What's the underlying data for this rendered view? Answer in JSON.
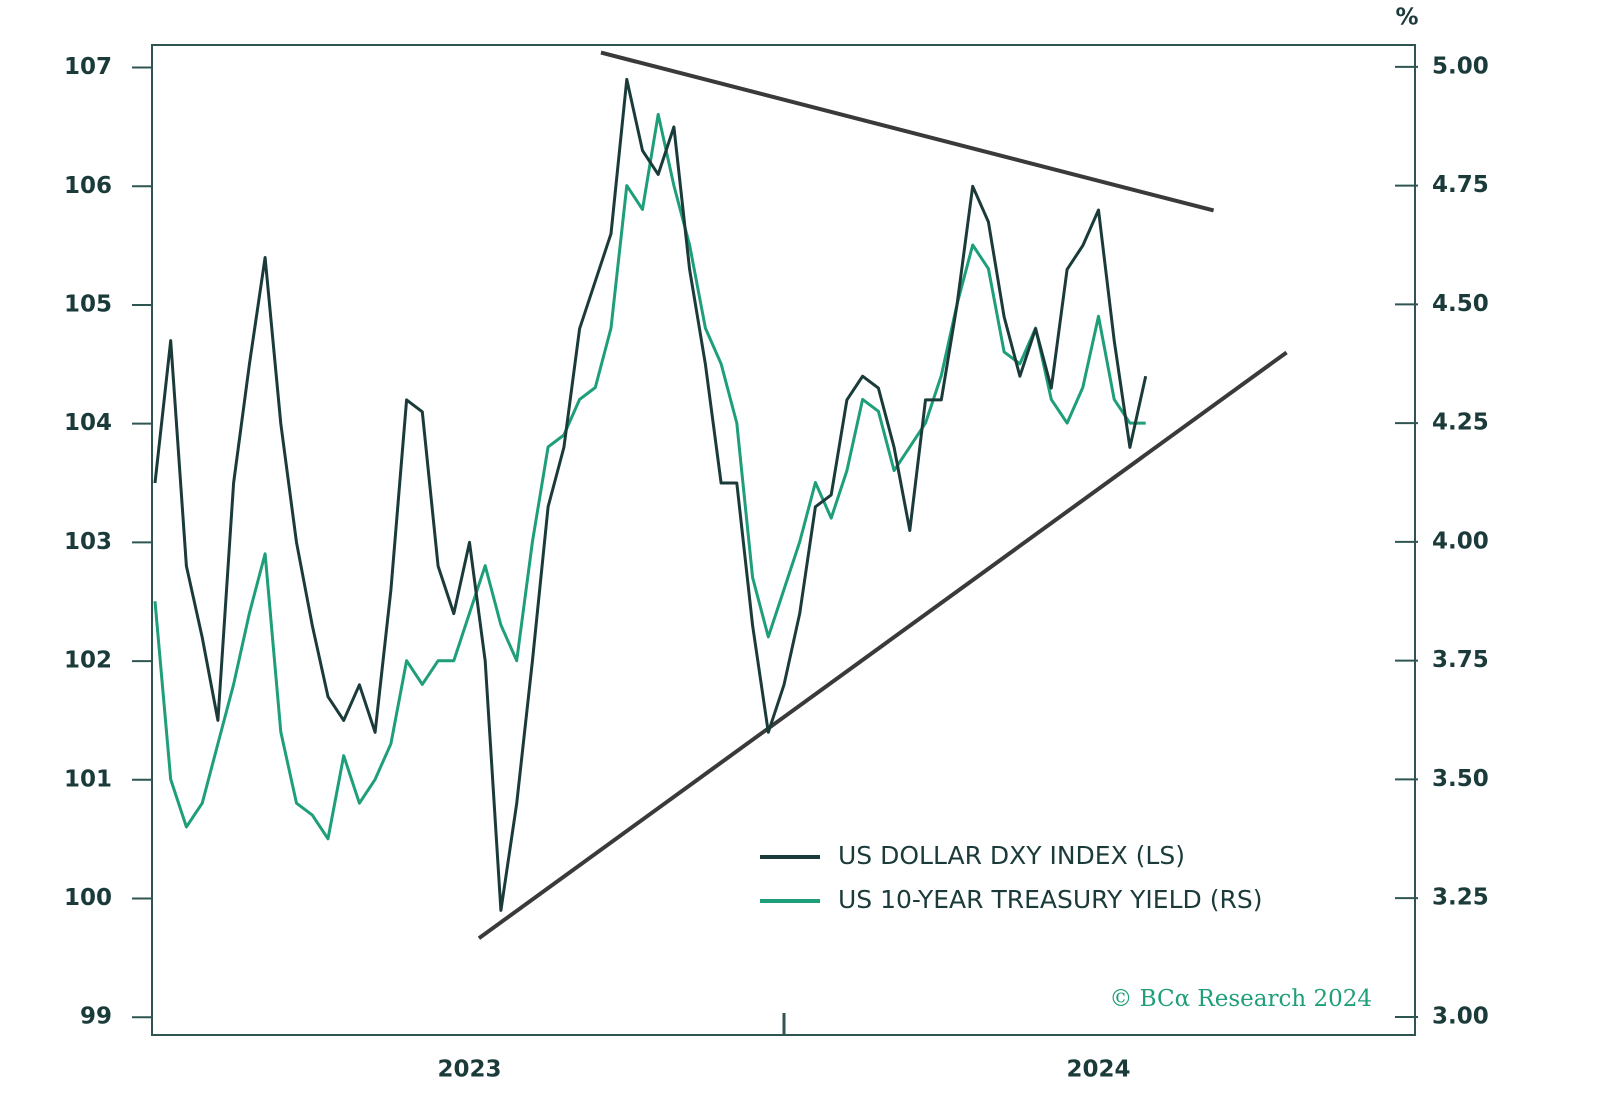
{
  "chart_data": {
    "type": "line",
    "xlim": [
      2023,
      2025
    ],
    "xticks": [
      {
        "value": 2023.5,
        "label": "2023"
      },
      {
        "value": 2024.5,
        "label": "2024"
      }
    ],
    "xticks_minor": [
      2024
    ],
    "ylim": [
      98.85,
      107.19
    ],
    "yticks": [
      99,
      100,
      101,
      102,
      103,
      104,
      105,
      106,
      107
    ],
    "y2lim": [
      2.962,
      5.046
    ],
    "y2ticks": [
      {
        "value": 3,
        "label": "3.00"
      },
      3.25,
      {
        "value": 3.5,
        "label": "3.50"
      },
      3.75,
      {
        "value": 4,
        "label": "4.00"
      },
      4.25,
      {
        "value": 4.5,
        "label": "4.50"
      },
      4.75,
      {
        "value": 5,
        "label": "5.00"
      }
    ],
    "y2_unit": "%",
    "x": [
      2023,
      2023.025,
      2023.05,
      2023.075,
      2023.1,
      2023.125,
      2023.15,
      2023.175,
      2023.2,
      2023.225,
      2023.25,
      2023.275,
      2023.3,
      2023.325,
      2023.35,
      2023.375,
      2023.4,
      2023.425,
      2023.45,
      2023.475,
      2023.5,
      2023.525,
      2023.55,
      2023.575,
      2023.6,
      2023.625,
      2023.65,
      2023.675,
      2023.7,
      2023.725,
      2023.75,
      2023.775,
      2023.8,
      2023.825,
      2023.85,
      2023.875,
      2023.9,
      2023.925,
      2023.95,
      2023.975,
      2024,
      2024.025,
      2024.05,
      2024.075,
      2024.1,
      2024.125,
      2024.15,
      2024.175,
      2024.2,
      2024.225,
      2024.25,
      2024.275,
      2024.3,
      2024.325,
      2024.35,
      2024.375,
      2024.4,
      2024.425,
      2024.45,
      2024.475,
      2024.5,
      2024.525,
      2024.55,
      2024.575
    ],
    "series": [
      {
        "name": "US DOLLAR DXY INDEX (LS)",
        "color": "#1b3b3a",
        "values": [
          103.5,
          104.7,
          102.8,
          102.2,
          101.5,
          103.5,
          104.5,
          105.4,
          104.0,
          103.0,
          102.3,
          101.7,
          101.5,
          101.8,
          101.4,
          102.6,
          104.2,
          104.1,
          102.8,
          102.4,
          103.0,
          102.0,
          99.9,
          100.8,
          102.0,
          103.3,
          103.8,
          104.8,
          105.2,
          105.6,
          106.9,
          106.3,
          106.1,
          106.5,
          105.3,
          104.5,
          103.5,
          103.5,
          102.3,
          101.4,
          101.8,
          102.4,
          103.3,
          103.4,
          104.2,
          104.4,
          104.3,
          103.8,
          103.1,
          104.2,
          104.2,
          105.0,
          106.0,
          105.7,
          104.9,
          104.4,
          104.8,
          104.3,
          105.3,
          105.5,
          105.8,
          104.7,
          103.8,
          104.4
        ]
      },
      {
        "name": "US 10-YEAR TREASURY YIELD (RS)",
        "color": "#1f9e7a",
        "axis": "y2",
        "values": [
          3.875,
          3.5,
          3.4,
          3.45,
          3.575,
          3.7,
          3.85,
          3.975,
          3.6,
          3.45,
          3.425,
          3.375,
          3.55,
          3.45,
          3.5,
          3.575,
          3.75,
          3.7,
          3.75,
          3.75,
          3.85,
          3.95,
          3.825,
          3.75,
          4.0,
          4.2,
          4.225,
          4.3,
          4.325,
          4.45,
          4.75,
          4.7,
          4.9,
          4.75,
          4.625,
          4.45,
          4.375,
          4.25,
          3.925,
          3.8,
          3.9,
          4.0,
          4.125,
          4.05,
          4.15,
          4.3,
          4.275,
          4.15,
          4.2,
          4.25,
          4.35,
          4.5,
          4.625,
          4.575,
          4.4,
          4.375,
          4.45,
          4.3,
          4.25,
          4.325,
          4.475,
          4.3,
          4.25,
          4.25
        ]
      }
    ],
    "trendlines": [
      {
        "x": [
          2023.709,
          2024.683
        ],
        "y": [
          107.126,
          105.796
        ],
        "color": "#3a3a3a"
      },
      {
        "x": [
          2023.515,
          2024.799
        ],
        "y": [
          99.665,
          104.6
        ],
        "color": "#3a3a3a"
      }
    ],
    "source": "© BCα Research 2024"
  }
}
